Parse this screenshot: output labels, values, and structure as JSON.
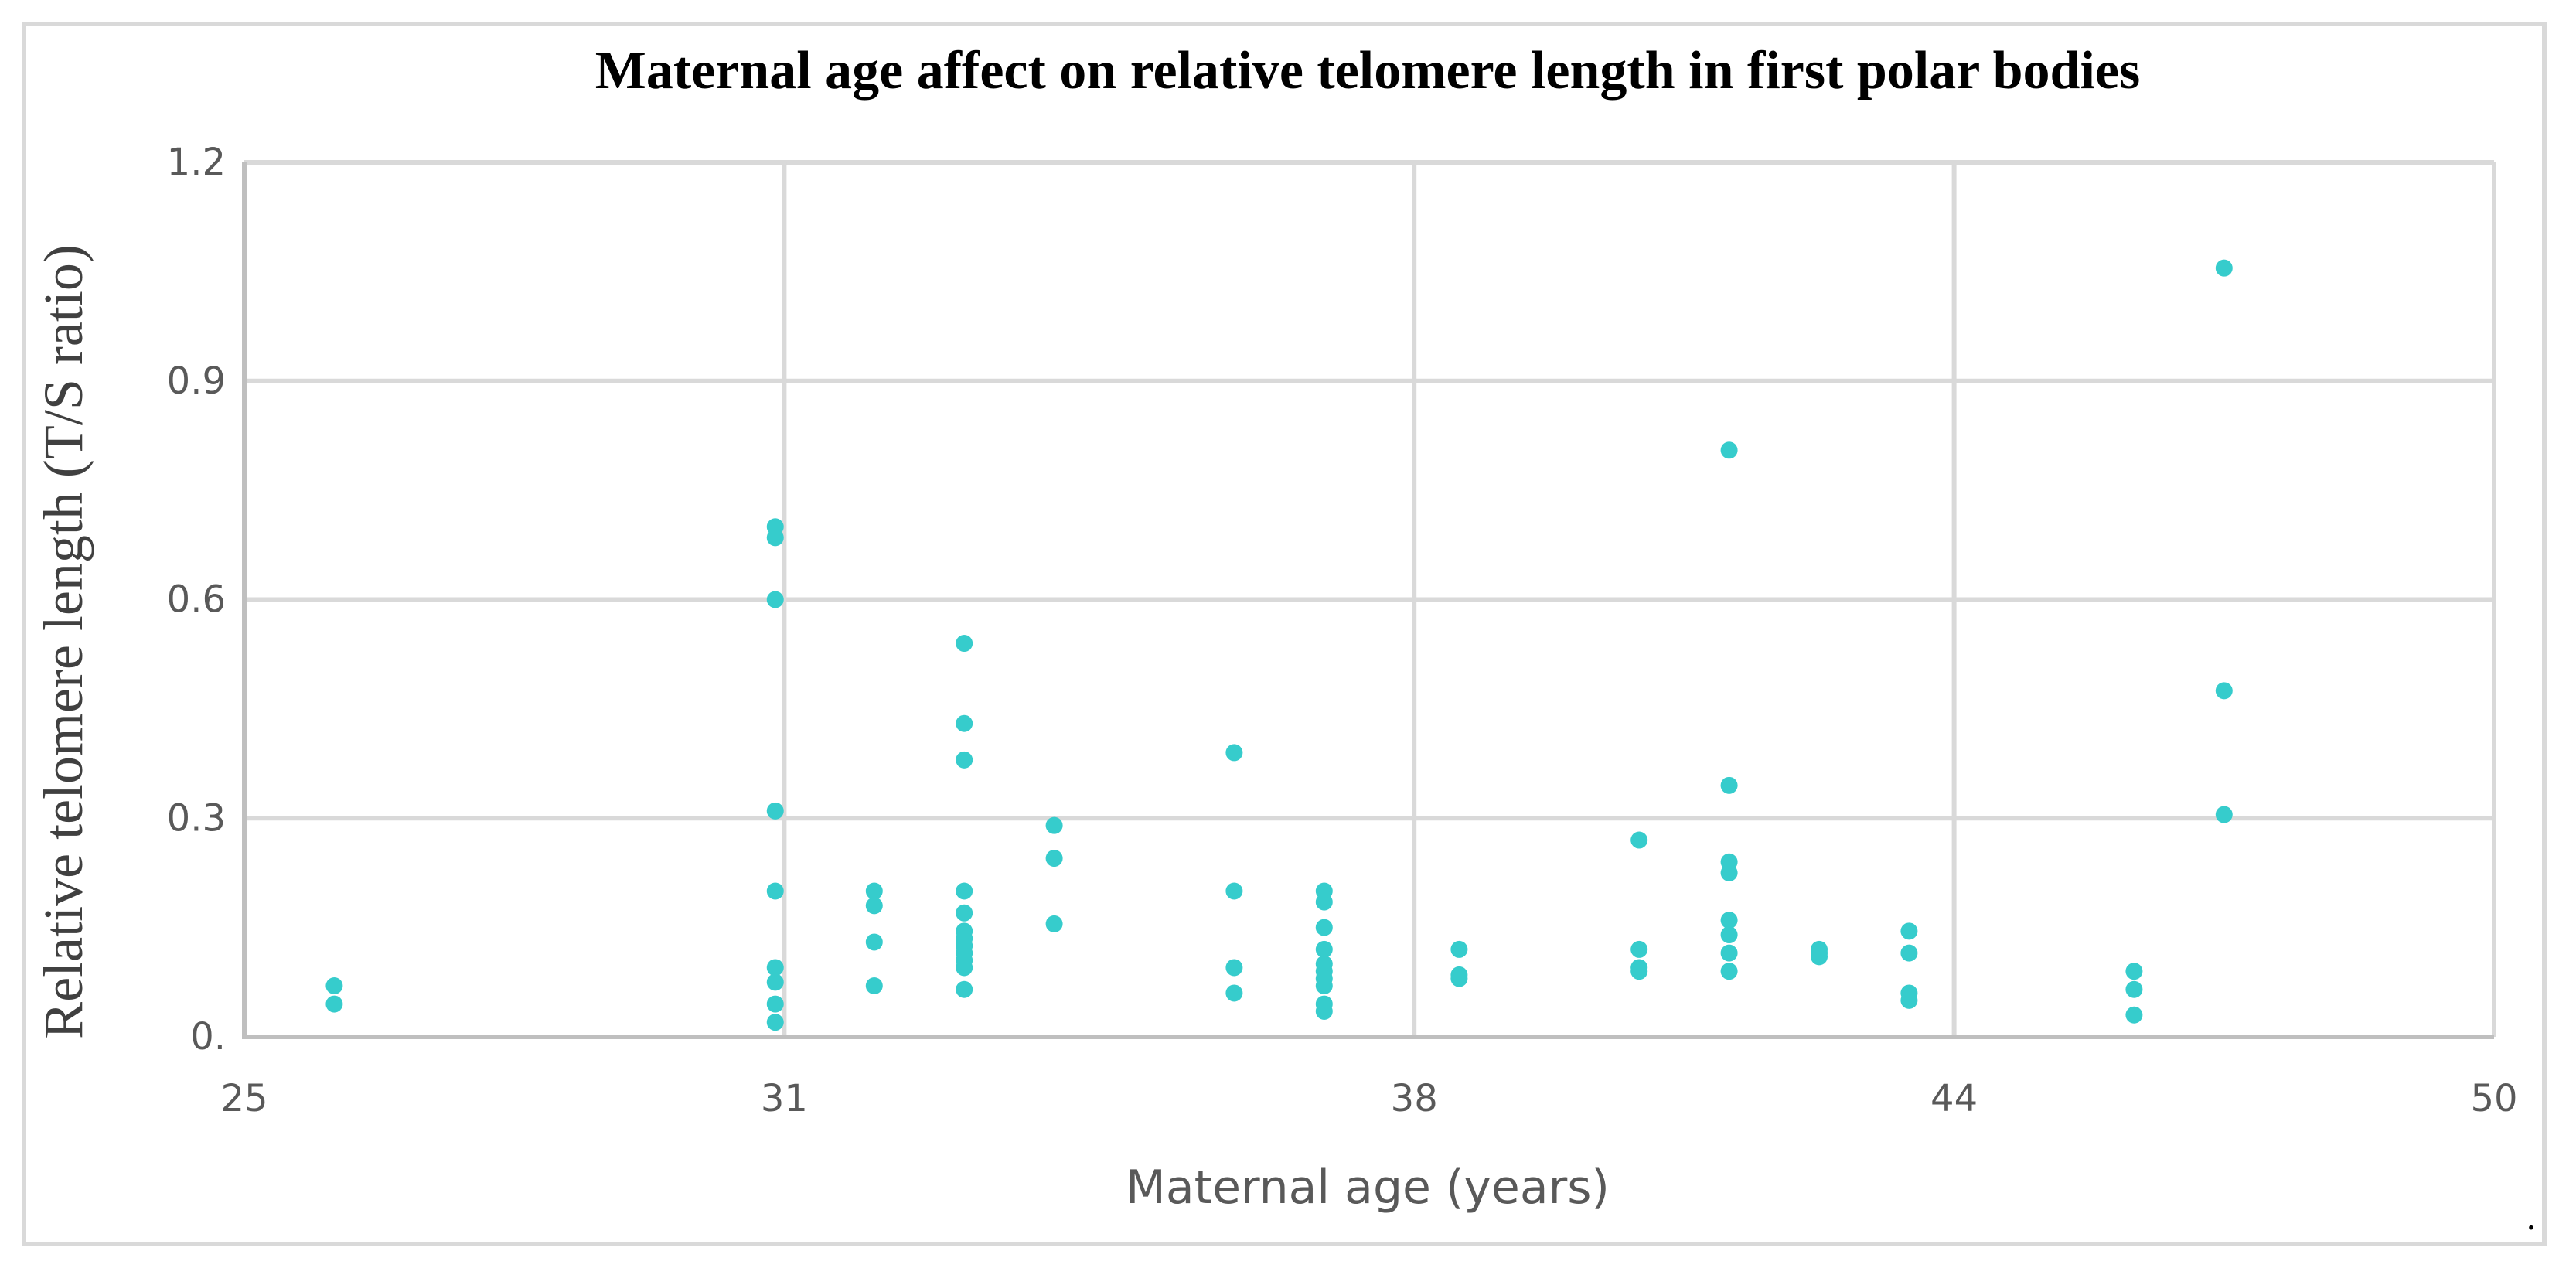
{
  "chart_data": {
    "type": "scatter",
    "title": "Maternal age affect on relative telomere length in first polar bodies",
    "xlabel": "Maternal age (years)",
    "ylabel": "Relative telomere length (T/S ratio)",
    "xlim": [
      25,
      50
    ],
    "ylim": [
      0,
      1.2
    ],
    "x_ticks": [
      25,
      31,
      38,
      44,
      50
    ],
    "x_tick_labels": [
      "25",
      "31",
      "38",
      "44",
      "50"
    ],
    "y_ticks": [
      0,
      0.3,
      0.6,
      0.9,
      1.2
    ],
    "y_tick_labels": [
      "0.",
      "0.3",
      "0.6",
      "0.9",
      "1.2"
    ],
    "grid": true,
    "marker_color": "#36cccc",
    "series": [
      {
        "name": "Relative telomere length",
        "points": [
          [
            26,
            0.07
          ],
          [
            26,
            0.045
          ],
          [
            30.9,
            0.7
          ],
          [
            30.9,
            0.685
          ],
          [
            30.9,
            0.6
          ],
          [
            30.9,
            0.31
          ],
          [
            30.9,
            0.2
          ],
          [
            30.9,
            0.095
          ],
          [
            30.9,
            0.075
          ],
          [
            30.9,
            0.045
          ],
          [
            30.9,
            0.02
          ],
          [
            32,
            0.2
          ],
          [
            32,
            0.18
          ],
          [
            32,
            0.13
          ],
          [
            32,
            0.07
          ],
          [
            33,
            0.54
          ],
          [
            33,
            0.43
          ],
          [
            33,
            0.38
          ],
          [
            33,
            0.2
          ],
          [
            33,
            0.17
          ],
          [
            33,
            0.145
          ],
          [
            33,
            0.135
          ],
          [
            33,
            0.125
          ],
          [
            33,
            0.115
          ],
          [
            33,
            0.105
          ],
          [
            33,
            0.095
          ],
          [
            33,
            0.065
          ],
          [
            34,
            0.29
          ],
          [
            34,
            0.245
          ],
          [
            34,
            0.155
          ],
          [
            36,
            0.39
          ],
          [
            36,
            0.2
          ],
          [
            36,
            0.095
          ],
          [
            36,
            0.06
          ],
          [
            37,
            0.2
          ],
          [
            37,
            0.185
          ],
          [
            37,
            0.15
          ],
          [
            37,
            0.12
          ],
          [
            37,
            0.1
          ],
          [
            37,
            0.09
          ],
          [
            37,
            0.08
          ],
          [
            37,
            0.07
          ],
          [
            37,
            0.045
          ],
          [
            37,
            0.035
          ],
          [
            38.5,
            0.12
          ],
          [
            38.5,
            0.085
          ],
          [
            38.5,
            0.08
          ],
          [
            40.5,
            0.27
          ],
          [
            40.5,
            0.12
          ],
          [
            40.5,
            0.095
          ],
          [
            40.5,
            0.09
          ],
          [
            41.5,
            0.805
          ],
          [
            41.5,
            0.345
          ],
          [
            41.5,
            0.24
          ],
          [
            41.5,
            0.225
          ],
          [
            41.5,
            0.16
          ],
          [
            41.5,
            0.14
          ],
          [
            41.5,
            0.115
          ],
          [
            41.5,
            0.09
          ],
          [
            42.5,
            0.12
          ],
          [
            42.5,
            0.115
          ],
          [
            42.5,
            0.11
          ],
          [
            43.5,
            0.145
          ],
          [
            43.5,
            0.115
          ],
          [
            43.5,
            0.06
          ],
          [
            43.5,
            0.05
          ],
          [
            46,
            0.09
          ],
          [
            46,
            0.065
          ],
          [
            46,
            0.03
          ],
          [
            47,
            1.055
          ],
          [
            47,
            0.475
          ],
          [
            47,
            0.305
          ]
        ]
      }
    ]
  }
}
